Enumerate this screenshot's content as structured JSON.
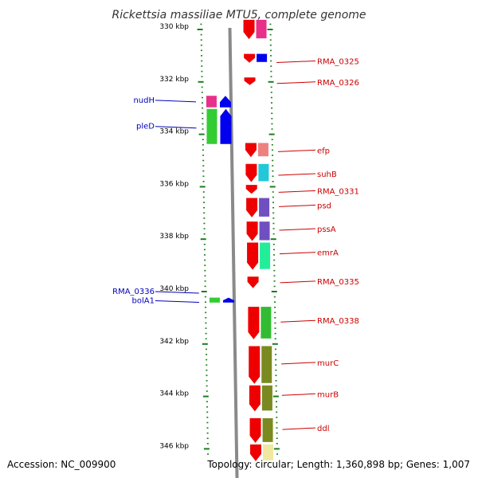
{
  "title": "Rickettsia massiliae MTU5, complete genome",
  "footer": {
    "accession": "Accession: NC_009900",
    "topology": "Topology: circular; Length: 1,360,898 bp; Genes: 1,007"
  },
  "kbp_ticks": [
    {
      "label": "330 kbp",
      "pos": 330.0
    },
    {
      "label": "332 kbp",
      "pos": 332.0
    },
    {
      "label": "334 kbp",
      "pos": 334.0
    },
    {
      "label": "336 kbp",
      "pos": 336.0
    },
    {
      "label": "338 kbp",
      "pos": 338.0
    },
    {
      "label": "340 kbp",
      "pos": 340.0
    },
    {
      "label": "342 kbp",
      "pos": 342.0
    },
    {
      "label": "344 kbp",
      "pos": 344.0
    },
    {
      "label": "346 kbp",
      "pos": 346.0
    }
  ],
  "left_labels": [
    {
      "name": "nudH",
      "pos": 332.7
    },
    {
      "name": "pleD",
      "pos": 333.7
    },
    {
      "name": "RMA_0336",
      "pos": 340.0
    },
    {
      "name": "bolA1",
      "pos": 340.35
    }
  ],
  "right_labels": [
    {
      "name": "RMA_0325",
      "pos": 331.2
    },
    {
      "name": "RMA_0326",
      "pos": 332.0
    },
    {
      "name": "efp",
      "pos": 334.6
    },
    {
      "name": "suhB",
      "pos": 335.5
    },
    {
      "name": "RMA_0331",
      "pos": 336.15
    },
    {
      "name": "psd",
      "pos": 336.7
    },
    {
      "name": "pssA",
      "pos": 337.6
    },
    {
      "name": "emrA",
      "pos": 338.5
    },
    {
      "name": "RMA_0335",
      "pos": 339.6
    },
    {
      "name": "RMA_0338",
      "pos": 341.1
    },
    {
      "name": "murC",
      "pos": 342.7
    },
    {
      "name": "murB",
      "pos": 343.9
    },
    {
      "name": "ddl",
      "pos": 345.2
    }
  ],
  "left_genes": [
    {
      "start": 332.5,
      "end": 333.0,
      "inner": "#e8308a",
      "outer": "#0000ee"
    },
    {
      "start": 333.0,
      "end": 334.4,
      "inner": "#33cc33",
      "outer": "#0000ee"
    },
    {
      "start": 340.2,
      "end": 340.45,
      "inner": "#33cc33",
      "outer": "#0000ee"
    }
  ],
  "right_genes": [
    {
      "start": 329.6,
      "end": 330.4,
      "inner": "#ee0000",
      "outer": "#e8308a"
    },
    {
      "start": 330.9,
      "end": 331.3,
      "inner": "#ee0000",
      "outer": "#0000ee"
    },
    {
      "start": 331.8,
      "end": 332.15,
      "inner": "#ee0000",
      "outer": ""
    },
    {
      "start": 334.3,
      "end": 334.9,
      "inner": "#ee0000",
      "outer": "#ee8080"
    },
    {
      "start": 335.1,
      "end": 335.85,
      "inner": "#ee0000",
      "outer": "#22c8d8"
    },
    {
      "start": 335.9,
      "end": 336.3,
      "inner": "#ee0000",
      "outer": ""
    },
    {
      "start": 336.4,
      "end": 337.2,
      "inner": "#ee0000",
      "outer": "#7050c0"
    },
    {
      "start": 337.3,
      "end": 338.1,
      "inner": "#ee0000",
      "outer": "#7050c0"
    },
    {
      "start": 338.1,
      "end": 339.2,
      "inner": "#ee0000",
      "outer": "#22ee99"
    },
    {
      "start": 339.4,
      "end": 339.9,
      "inner": "#ee0000",
      "outer": ""
    },
    {
      "start": 340.55,
      "end": 341.85,
      "inner": "#ee0000",
      "outer": "#33bb33"
    },
    {
      "start": 342.05,
      "end": 343.55,
      "inner": "#ee0000",
      "outer": "#7a8a20"
    },
    {
      "start": 343.55,
      "end": 344.6,
      "inner": "#ee0000",
      "outer": "#7a8a20"
    },
    {
      "start": 344.8,
      "end": 345.8,
      "inner": "#ee0000",
      "outer": "#7a8a20"
    },
    {
      "start": 345.8,
      "end": 346.5,
      "inner": "#ee0000",
      "outer": "#f0e8a0"
    }
  ],
  "colors": {
    "left_label": "#0000bb",
    "right_label": "#cc0000",
    "tick": "#1a7f1a",
    "backbone": "#8a8a8a"
  }
}
